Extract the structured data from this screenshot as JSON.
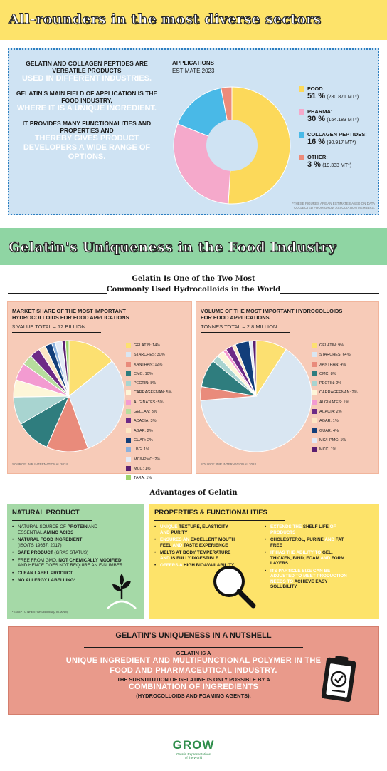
{
  "header1": {
    "title": "All-rounders in the most diverse sectors"
  },
  "intro": {
    "p1_bold": "GELATIN AND COLLAGEN PEPTIDES ARE VERSATILE PRODUCTS",
    "p1_white": "USED IN DIFFERENT INDUSTRIES.",
    "p2_bold": "GELATIN'S MAIN FIELD OF APPLICATION IS THE FOOD INDUSTRY,",
    "p2_white": "WHERE IT IS A UNIQUE INGREDIENT.",
    "p3_bold": "IT PROVIDES MANY FUNCTIONALITIES AND PROPERTIES AND",
    "p3_white": "THEREBY GIVES PRODUCT DEVELOPERS A WIDE RANGE OF OPTIONS."
  },
  "applications": {
    "title": "APPLICATIONS",
    "subtitle": "ESTIMATE 2023",
    "footnote": "*THESE FIGURES ARE AN ESTIMATE BASED ON DATA COLLECTED FROM GROW ASSOCIATION MEMBERS."
  },
  "header2": {
    "title": "Gelatin's Uniqueness in the Food Industry"
  },
  "section": {
    "title_line1": "Gelatin Is One of the Two Most",
    "title_line2": "Commonly Used Hydrocolloids in the World"
  },
  "panel_left": {
    "title": "MARKET SHARE OF THE MOST IMPORTANT HYDROCOLLOIDS FOR FOOD APPLICATIONS",
    "subtitle": "$ VALUE TOTAL = 12 BILLION",
    "source": "SOURCE: IMR INTERNATIONAL 2024"
  },
  "panel_right": {
    "title": "VOLUME OF THE MOST IMPORTANT HYDROCOLLOIDS FOR FOOD APPLICATIONS",
    "subtitle": "TONNES TOTAL = 2.8 MILLION",
    "source": "SOURCE: IMR INTERNATIONAL 2024"
  },
  "advantages": {
    "title": "Advantages of Gelatin"
  },
  "natural": {
    "title": "NATURAL PRODUCT",
    "i1a": "NATURAL SOURCE OF ",
    "i1b": "PROTEIN",
    "i1c": " AND ESSENTIAL ",
    "i1d": "AMINO ACIDS",
    "i2a": "NATURAL FOOD INGREDIENT",
    "i2b": "(ISO/TS 19657: 2017)",
    "i3a": "SAFE PRODUCT",
    "i3b": " (GRAS STATUS)",
    "i4a": "FREE FROM GMO, ",
    "i4b": "NOT CHEMICALLY MODIFIED",
    "i4c": " AND HENCE DOES NOT REQUIRE AN E-NUMBER",
    "i5": "CLEAN LABEL PRODUCT",
    "i6": "NO ALLERGY LABELLING*",
    "note": "* EXCEPT O WHEN FISH DERIVED (2 IN JAPAN)"
  },
  "props": {
    "title": "PROPERTIES & FUNCTIONALITIES",
    "a1a": "UNIQUE ",
    "a1b": "TEXTURE, ELASTICITY",
    "a1c": " AND ",
    "a1d": "PURITY",
    "a2a": "ENSURES AN ",
    "a2b": "EXCELLENT MOUTH FEEL",
    "a2c": " AND ",
    "a2d": "TASTE EXPERIENCE",
    "a3a": "MELTS AT BODY TEMPERATURE",
    "a3b": " AND ",
    "a3c": "IS FULLY DIGESTIBLE",
    "a4a": "OFFERS A ",
    "a4b": "HIGH BIOAVAILABILITY",
    "b1a": "EXTENDS THE ",
    "b1b": "SHELF LIFE",
    "b1c": " OF PRODUCTS",
    "b2a": "CHOLESTEROL, PURINE",
    "b2b": " AND ",
    "b2c": "FAT FREE",
    "b3a": "IT HAS THE ABILITY TO ",
    "b3b": "GEL, THICKEN, BIND, FOAM",
    "b3c": " AND ",
    "b3d": "FORM LAYERS",
    "b4a": "ITS PARTICLE SIZE CAN BE ADJUSTED TO MEET PRODUCTION NEEDS TO ",
    "b4b": "ACHIEVE EASY SOLUBILITY"
  },
  "nutshell": {
    "title": "GELATIN'S UNIQUENESS IN A NUTSHELL",
    "l1": "GELATIN IS A",
    "l2": "UNIQUE INGREDIENT AND MULTIFUNCTIONAL POLYMER IN THE FOOD AND PHARMACEUTICAL INDUSTRY.",
    "l3": "THE SUBSTITUTION OF GELATINE IS ONLY POSSIBLE BY A",
    "l4": "COMBINATION OF INGREDIENTS",
    "l5": "(HYDROCOLLOIDS AND FOAMING AGENTS)."
  },
  "logo": {
    "name": "GROW",
    "tag1": "Gelatin Representatives",
    "tag2": "of the World"
  },
  "icons": [
    "clipboard-check-icon",
    "magnifier-icon",
    "sprout-icon"
  ],
  "chart_data": [
    {
      "type": "pie",
      "title": "APPLICATIONS",
      "subtitle": "ESTIMATE 2023",
      "donut": true,
      "slices": [
        {
          "label": "FOOD:",
          "percent": 51,
          "pct_text": "51 %",
          "amount": "(280.871 MT*)",
          "color": "#fcd95a"
        },
        {
          "label": "PHARMA:",
          "percent": 30,
          "pct_text": "30 %",
          "amount": "(164.183 MT*)",
          "color": "#f5a9cb"
        },
        {
          "label": "COLLAGEN PEPTIDES:",
          "percent": 16,
          "pct_text": "16 %",
          "amount": "(90.917 MT*)",
          "color": "#49b9e7"
        },
        {
          "label": "OTHER:",
          "percent": 3,
          "pct_text": "3 %",
          "amount": "(19.333 MT*)",
          "color": "#ec8b7a"
        }
      ]
    },
    {
      "type": "pie",
      "title": "MARKET SHARE OF THE MOST IMPORTANT HYDROCOLLOIDS FOR FOOD APPLICATIONS",
      "subtitle": "$ VALUE TOTAL = 12 BILLION",
      "slices": [
        {
          "label": "GELATIN: 14%",
          "value": 14,
          "color": "#fce071"
        },
        {
          "label": "STARCHES: 30%",
          "value": 30,
          "color": "#d9e6f2"
        },
        {
          "label": "XANTHAN: 12%",
          "value": 12,
          "color": "#e98b7b"
        },
        {
          "label": "CMC: 10%",
          "value": 10,
          "color": "#2f7d7e"
        },
        {
          "label": "PECTIN: 8%",
          "value": 8,
          "color": "#a8d4d0"
        },
        {
          "label": "CARRAGEENAN: 5%",
          "value": 5,
          "color": "#fdf6d8"
        },
        {
          "label": "ALGINATES: 5%",
          "value": 5,
          "color": "#f39bd1"
        },
        {
          "label": "GELLAN: 3%",
          "value": 3,
          "color": "#b7dd9d"
        },
        {
          "label": "ACACIA: 3%",
          "value": 3,
          "color": "#6d2a86"
        },
        {
          "label": "AGAR: 2%",
          "value": 2,
          "color": "#fbe6c5"
        },
        {
          "label": "GUAR: 2%",
          "value": 2,
          "color": "#123e7a"
        },
        {
          "label": "LBG: 1%",
          "value": 1,
          "color": "#8bb1dd"
        },
        {
          "label": "MC/HPMC: 2%",
          "value": 2,
          "color": "#e3eaf6"
        },
        {
          "label": "MCC: 1%",
          "value": 1,
          "color": "#5a1f70"
        },
        {
          "label": "TARA: 1%",
          "value": 1,
          "color": "#9ed36b"
        }
      ]
    },
    {
      "type": "pie",
      "title": "VOLUME OF THE MOST IMPORTANT HYDROCOLLOIDS FOR FOOD APPLICATIONS",
      "subtitle": "TONNES TOTAL = 2.8 MILLION",
      "slices": [
        {
          "label": "GELATIN: 9%",
          "value": 9,
          "color": "#fce071"
        },
        {
          "label": "STARCHES: 64%",
          "value": 64,
          "color": "#d9e6f2"
        },
        {
          "label": "XANTHAN: 4%",
          "value": 4,
          "color": "#e98b7b"
        },
        {
          "label": "CMC: 8%",
          "value": 8,
          "color": "#2f7d7e"
        },
        {
          "label": "PECTIN: 2%",
          "value": 2,
          "color": "#a8d4d0"
        },
        {
          "label": "CARRAGEENAN: 2%",
          "value": 2,
          "color": "#fdf6d8"
        },
        {
          "label": "ALGINATES: 1%",
          "value": 1,
          "color": "#f39bd1"
        },
        {
          "label": "ACACIA: 2%",
          "value": 2,
          "color": "#6d2a86"
        },
        {
          "label": "AGAR: 1%",
          "value": 1,
          "color": "#fbe6c5"
        },
        {
          "label": "GUAR: 4%",
          "value": 4,
          "color": "#123e7a"
        },
        {
          "label": "MC/HPMC: 1%",
          "value": 1,
          "color": "#e3eaf6"
        },
        {
          "label": "MCC: 1%",
          "value": 1,
          "color": "#5a1f70"
        }
      ]
    }
  ]
}
